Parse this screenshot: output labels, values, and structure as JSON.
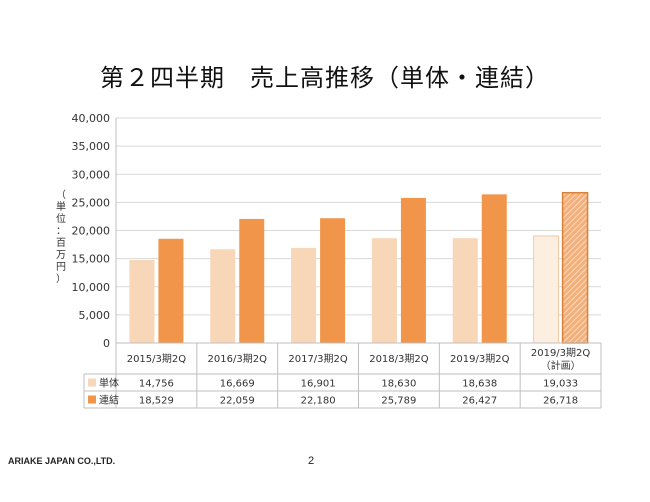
{
  "slide": {
    "title": "第２四半期　売上高推移（単体・連結）",
    "company": "ARIAKE JAPAN CO.,LTD.",
    "page_number": "2"
  },
  "chart_data": {
    "type": "bar",
    "ylabel": "（単位：百万円）",
    "ylim": [
      0,
      40000
    ],
    "y_ticks": [
      "0",
      "5,000",
      "10,000",
      "15,000",
      "20,000",
      "25,000",
      "30,000",
      "35,000",
      "40,000"
    ],
    "categories": [
      "2015/3期2Q",
      "2016/3期2Q",
      "2017/3期2Q",
      "2018/3期2Q",
      "2019/3期2Q",
      "2019/3期2Q"
    ],
    "category_notes": [
      "",
      "",
      "",
      "",
      "",
      "（計画）"
    ],
    "grid": true,
    "legend": "table-below",
    "series": [
      {
        "name": "単体",
        "color": "#f8d6b8",
        "values": [
          14756,
          16669,
          16901,
          18630,
          18638,
          19033
        ],
        "labels": [
          "14,756",
          "16,669",
          "16,901",
          "18,630",
          "18,638",
          "19,033"
        ]
      },
      {
        "name": "連結",
        "color": "#f0954a",
        "values": [
          18529,
          22059,
          22180,
          25789,
          26427,
          26718
        ],
        "labels": [
          "18,529",
          "22,059",
          "22,180",
          "25,789",
          "26,427",
          "26,718"
        ]
      }
    ],
    "last_category_is_plan": true
  }
}
